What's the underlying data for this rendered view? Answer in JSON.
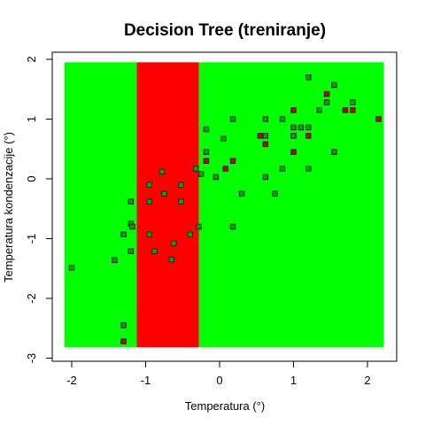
{
  "chart_data": {
    "type": "scatter",
    "title": "Decision Tree (treniranje)",
    "xlabel": "Temperatura (°)",
    "ylabel": "Temperatura kondenzacije (°)",
    "xlim": [
      -2.1,
      2.22
    ],
    "ylim": [
      -2.82,
      1.95
    ],
    "x_ticks": [
      -2,
      -1,
      0,
      1,
      2
    ],
    "y_ticks": [
      -3,
      -2,
      -1,
      0,
      1,
      2
    ],
    "regions": [
      {
        "x_from": -2.1,
        "x_to": -1.12,
        "color": "#00ff00"
      },
      {
        "x_from": -1.12,
        "x_to": -0.28,
        "color": "#ff0000"
      },
      {
        "x_from": -0.28,
        "x_to": 2.22,
        "color": "#00ff00"
      }
    ],
    "classes": [
      {
        "fill": "#00aa00",
        "points": [
          [
            -2.0,
            -1.49
          ],
          [
            -1.42,
            -1.36
          ],
          [
            -1.3,
            -0.93
          ],
          [
            -1.2,
            -0.38
          ],
          [
            -1.2,
            -0.75
          ],
          [
            -1.18,
            -0.8
          ],
          [
            -1.2,
            -1.21
          ],
          [
            -1.3,
            -2.45
          ],
          [
            -0.95,
            -0.1
          ],
          [
            -0.95,
            -0.38
          ],
          [
            -0.95,
            -0.93
          ],
          [
            -0.88,
            -1.21
          ],
          [
            -0.78,
            0.12
          ],
          [
            -0.75,
            -0.25
          ],
          [
            -0.65,
            -1.35
          ],
          [
            -0.62,
            -1.08
          ],
          [
            -0.52,
            -0.1
          ],
          [
            -0.52,
            -0.38
          ],
          [
            -0.4,
            -0.93
          ],
          [
            -0.32,
            0.17
          ],
          [
            -0.28,
            -0.8
          ],
          [
            -0.25,
            0.08
          ],
          [
            -0.18,
            0.45
          ],
          [
            -0.18,
            0.83
          ],
          [
            -0.05,
            0.03
          ],
          [
            0.05,
            0.67
          ],
          [
            0.18,
            1.0
          ],
          [
            0.18,
            -0.8
          ],
          [
            0.3,
            -0.25
          ],
          [
            0.62,
            1.0
          ],
          [
            0.62,
            0.72
          ],
          [
            0.62,
            0.03
          ],
          [
            0.75,
            -0.25
          ],
          [
            0.85,
            0.17
          ],
          [
            0.85,
            1.0
          ],
          [
            1.0,
            0.72
          ],
          [
            1.0,
            0.86
          ],
          [
            1.1,
            0.86
          ],
          [
            1.2,
            1.7
          ],
          [
            1.2,
            0.86
          ],
          [
            1.2,
            0.17
          ],
          [
            1.35,
            1.15
          ],
          [
            1.45,
            1.28
          ],
          [
            1.55,
            0.45
          ],
          [
            1.55,
            1.57
          ],
          [
            1.8,
            1.28
          ]
        ]
      },
      {
        "fill": "#cc0000",
        "points": [
          [
            -1.3,
            -2.72
          ],
          [
            -0.18,
            0.3
          ],
          [
            0.08,
            0.17
          ],
          [
            0.18,
            0.3
          ],
          [
            0.55,
            0.72
          ],
          [
            0.62,
            0.58
          ],
          [
            1.0,
            1.15
          ],
          [
            1.0,
            0.45
          ],
          [
            1.2,
            0.72
          ],
          [
            1.45,
            1.42
          ],
          [
            1.7,
            1.15
          ],
          [
            1.8,
            1.15
          ],
          [
            2.15,
            1.0
          ]
        ]
      }
    ]
  }
}
